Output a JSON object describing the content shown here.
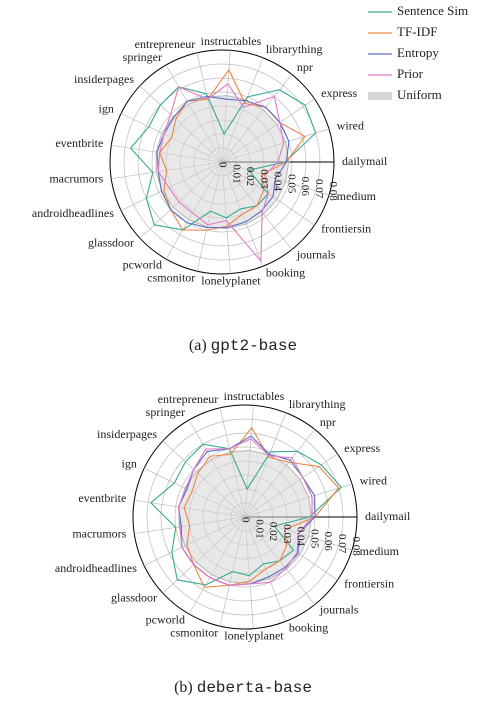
{
  "chart_data": [
    {
      "type": "radar",
      "caption": {
        "label": "(a)",
        "model": "gpt2-base"
      },
      "categories": [
        "dailymail",
        "wired",
        "express",
        "npr",
        "librarything",
        "instructables",
        "entrepreneur",
        "springer",
        "insiderpages",
        "ign",
        "eventbrite",
        "macrumors",
        "androidheadlines",
        "glassdoor",
        "pcworld",
        "csmonitor",
        "lonelyplanet",
        "booking",
        "journals",
        "frontiersin",
        "medium"
      ],
      "ylim": [
        0,
        0.08
      ],
      "yticks": [
        0,
        0.01,
        0.02,
        0.03,
        0.04,
        0.05,
        0.06,
        0.07,
        0.08
      ],
      "legend": "upper right",
      "series": [
        {
          "name": "Sentence Sim",
          "color": "#3aaa8e",
          "values": [
            0.045,
            0.07,
            0.072,
            0.066,
            0.05,
            0.02,
            0.05,
            0.062,
            0.06,
            0.058,
            0.066,
            0.05,
            0.06,
            0.066,
            0.056,
            0.036,
            0.04,
            0.036,
            0.04,
            0.04,
            0.02
          ]
        },
        {
          "name": "TF-IDF",
          "color": "#ee8447",
          "values": [
            0.046,
            0.062,
            0.05,
            0.05,
            0.045,
            0.066,
            0.046,
            0.05,
            0.045,
            0.04,
            0.045,
            0.04,
            0.046,
            0.05,
            0.056,
            0.05,
            0.046,
            0.04,
            0.04,
            0.036,
            0.03
          ]
        },
        {
          "name": "Entropy",
          "color": "#5a6fc4",
          "values": [
            0.046,
            0.05,
            0.05,
            0.05,
            0.047,
            0.045,
            0.048,
            0.05,
            0.047,
            0.046,
            0.047,
            0.046,
            0.048,
            0.05,
            0.05,
            0.048,
            0.047,
            0.046,
            0.045,
            0.044,
            0.04
          ]
        },
        {
          "name": "Prior",
          "color": "#e079c6",
          "values": [
            0.04,
            0.046,
            0.05,
            0.06,
            0.042,
            0.056,
            0.046,
            0.062,
            0.05,
            0.046,
            0.045,
            0.046,
            0.042,
            0.042,
            0.042,
            0.046,
            0.042,
            0.076,
            0.046,
            0.04,
            0.032
          ]
        },
        {
          "name": "Uniform",
          "color": "#d6d6d6",
          "fill": true,
          "values": [
            0.0476,
            0.0476,
            0.0476,
            0.0476,
            0.0476,
            0.0476,
            0.0476,
            0.0476,
            0.0476,
            0.0476,
            0.0476,
            0.0476,
            0.0476,
            0.0476,
            0.0476,
            0.0476,
            0.0476,
            0.0476,
            0.0476,
            0.0476,
            0.0476
          ]
        }
      ]
    },
    {
      "type": "radar",
      "caption": {
        "label": "(b)",
        "model": "deberta-base"
      },
      "categories": [
        "dailymail",
        "wired",
        "express",
        "npr",
        "librarything",
        "instructables",
        "entrepreneur",
        "springer",
        "insiderpages",
        "ign",
        "eventbrite",
        "macrumors",
        "androidheadlines",
        "glassdoor",
        "pcworld",
        "csmonitor",
        "lonelyplanet",
        "booking",
        "journals",
        "frontiersin",
        "medium"
      ],
      "ylim": [
        0,
        0.08
      ],
      "yticks": [
        0,
        0.01,
        0.02,
        0.03,
        0.04,
        0.05,
        0.06,
        0.07,
        0.08
      ],
      "series": [
        {
          "color": "#3aaa8e",
          "values": [
            0.046,
            0.072,
            0.066,
            0.06,
            0.05,
            0.02,
            0.05,
            0.06,
            0.058,
            0.056,
            0.068,
            0.05,
            0.058,
            0.066,
            0.056,
            0.04,
            0.042,
            0.036,
            0.04,
            0.042,
            0.022
          ]
        },
        {
          "color": "#ee8447",
          "values": [
            0.05,
            0.07,
            0.064,
            0.05,
            0.046,
            0.064,
            0.046,
            0.05,
            0.046,
            0.042,
            0.044,
            0.04,
            0.046,
            0.05,
            0.058,
            0.05,
            0.046,
            0.04,
            0.04,
            0.036,
            0.03
          ]
        },
        {
          "color": "#5a6fc4",
          "values": [
            0.05,
            0.052,
            0.05,
            0.052,
            0.048,
            0.058,
            0.05,
            0.054,
            0.05,
            0.046,
            0.048,
            0.046,
            0.05,
            0.05,
            0.05,
            0.05,
            0.048,
            0.046,
            0.046,
            0.046,
            0.04
          ]
        },
        {
          "color": "#e079c6",
          "values": [
            0.048,
            0.05,
            0.05,
            0.054,
            0.047,
            0.056,
            0.05,
            0.056,
            0.05,
            0.047,
            0.048,
            0.047,
            0.05,
            0.05,
            0.05,
            0.05,
            0.048,
            0.05,
            0.047,
            0.045,
            0.04
          ]
        },
        {
          "color": "#d6d6d6",
          "fill": true,
          "values": [
            0.0476,
            0.0476,
            0.0476,
            0.0476,
            0.0476,
            0.0476,
            0.0476,
            0.0476,
            0.0476,
            0.0476,
            0.0476,
            0.0476,
            0.0476,
            0.0476,
            0.0476,
            0.0476,
            0.0476,
            0.0476,
            0.0476,
            0.0476,
            0.0476
          ]
        }
      ]
    }
  ]
}
